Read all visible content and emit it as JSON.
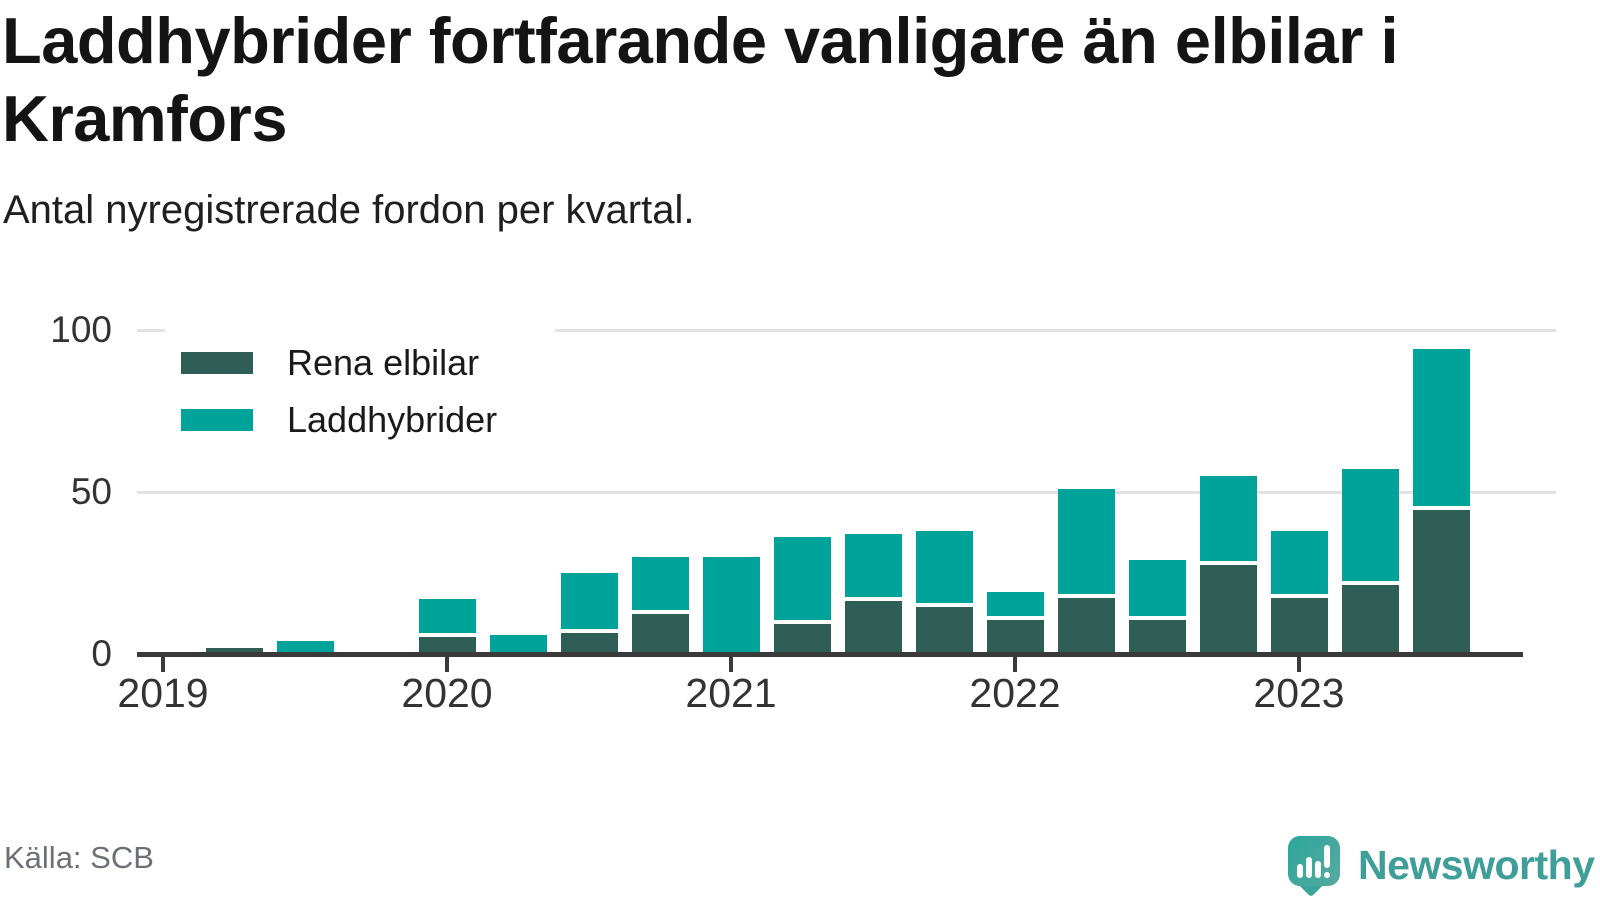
{
  "header": {
    "title": "Laddhybrider fortfarande vanligare än elbilar i Kramfors",
    "subtitle": "Antal nyregistrerade fordon per kvartal."
  },
  "footer": {
    "source": "Källa: SCB",
    "brand": "Newsworthy"
  },
  "colors": {
    "pure_electric": "#2f5e56",
    "plugin_hybrid": "#00a39a",
    "brand_teal": "#3f9f98",
    "axis": "#3a3a3a",
    "grid": "#e2e2e2",
    "text_muted": "#6d7076"
  },
  "chart_data": {
    "type": "bar",
    "stacked": true,
    "title": "Laddhybrider fortfarande vanligare än elbilar i Kramfors",
    "subtitle": "Antal nyregistrerade fordon per kvartal.",
    "source": "Källa: SCB",
    "categories": [
      "2019 Q1",
      "2019 Q2",
      "2019 Q3",
      "2019 Q4",
      "2020 Q1",
      "2020 Q2",
      "2020 Q3",
      "2020 Q4",
      "2021 Q1",
      "2021 Q2",
      "2021 Q3",
      "2021 Q4",
      "2022 Q1",
      "2022 Q2",
      "2022 Q3",
      "2022 Q4",
      "2023 Q1",
      "2023 Q2",
      "2023 Q3"
    ],
    "series": [
      {
        "name": "Rena elbilar",
        "color": "#2f5e56",
        "values": [
          0,
          2,
          0,
          0,
          6,
          0,
          7,
          13,
          0,
          10,
          17,
          15,
          11,
          18,
          11,
          28,
          18,
          22,
          45
        ]
      },
      {
        "name": "Laddhybrider",
        "color": "#00a39a",
        "values": [
          0,
          0,
          4,
          0,
          11,
          6,
          18,
          17,
          30,
          26,
          20,
          23,
          8,
          33,
          18,
          27,
          20,
          35,
          49
        ]
      }
    ],
    "ylim": [
      0,
      100
    ],
    "yticks": [
      0,
      50,
      100
    ],
    "x_tick_labels": [
      "2019",
      "2020",
      "2021",
      "2022",
      "2023"
    ],
    "x_tick_positions": [
      0,
      4,
      8,
      12,
      16
    ],
    "grid": "horizontal",
    "legend_position": "top-left-inside"
  }
}
